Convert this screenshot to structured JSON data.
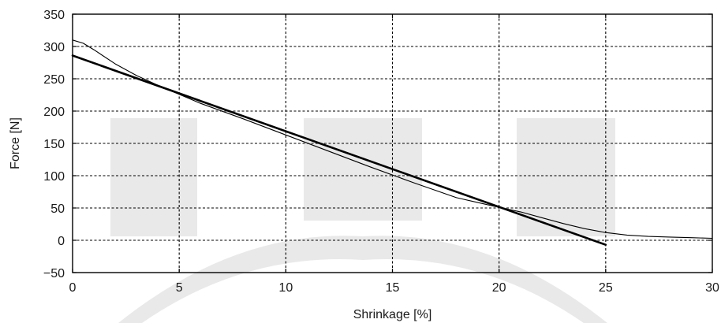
{
  "chart_data": {
    "type": "line",
    "title": "",
    "xlabel": "Shrinkage [%]",
    "ylabel": "Force [N]",
    "xlim": [
      0,
      30
    ],
    "ylim": [
      -50,
      350
    ],
    "xticks": [
      0,
      5,
      10,
      15,
      20,
      25,
      30
    ],
    "yticks": [
      -50,
      0,
      50,
      100,
      150,
      200,
      250,
      300,
      350
    ],
    "xtick_labels": [
      "0",
      "5",
      "10",
      "15",
      "20",
      "25",
      "30"
    ],
    "ytick_labels": [
      "−50",
      "0",
      "50",
      "100",
      "150",
      "200",
      "250",
      "300",
      "350"
    ],
    "grid": true,
    "legend": "none",
    "series": [
      {
        "style": "thin",
        "color": "#000000",
        "x": [
          0,
          0.5,
          1,
          2,
          3,
          4,
          5,
          6,
          8,
          10,
          12,
          14,
          16,
          18,
          20,
          21,
          22,
          23,
          24,
          25,
          26,
          27,
          28,
          29,
          30
        ],
        "y": [
          310,
          305,
          295,
          273,
          255,
          240,
          226,
          212,
          188,
          163,
          138,
          113,
          89,
          66,
          51,
          44,
          35,
          26,
          18,
          12,
          8,
          6,
          5,
          4,
          3
        ]
      },
      {
        "style": "thick",
        "color": "#000000",
        "x": [
          0,
          25
        ],
        "y": [
          286,
          -7
        ]
      }
    ]
  }
}
